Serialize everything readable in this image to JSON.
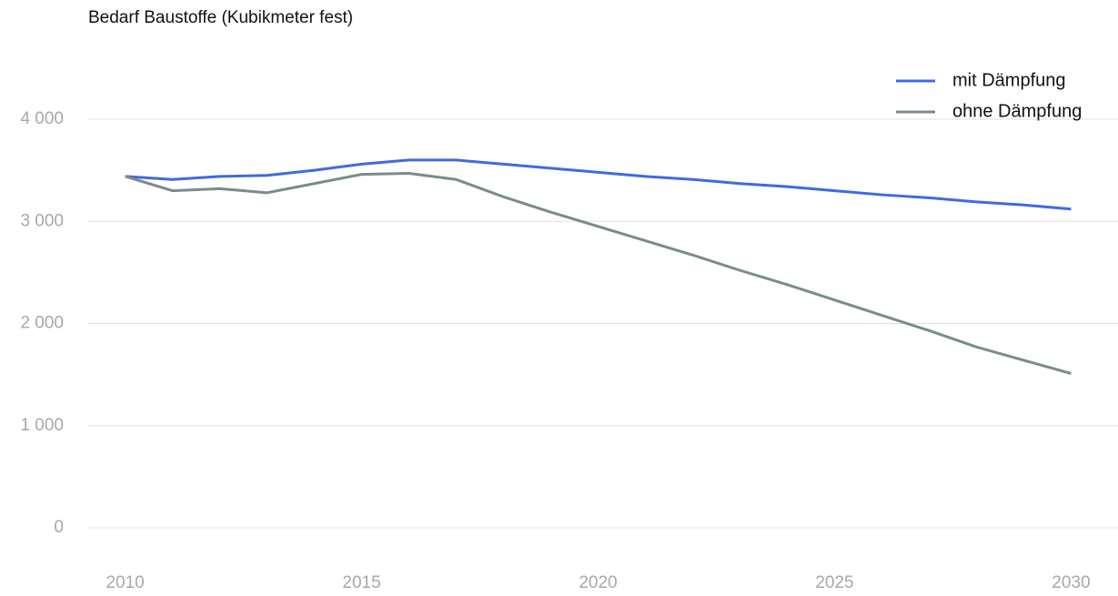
{
  "chart_data": {
    "type": "line",
    "title": "Bedarf Baustoffe (Kubikmeter fest)",
    "x": [
      2010,
      2011,
      2012,
      2013,
      2014,
      2015,
      2016,
      2017,
      2018,
      2019,
      2020,
      2021,
      2022,
      2023,
      2024,
      2025,
      2026,
      2027,
      2028,
      2029,
      2030
    ],
    "series": [
      {
        "name": "mit Dämpfung",
        "color": "#4169e1",
        "values": [
          3440,
          3410,
          3440,
          3450,
          3500,
          3560,
          3600,
          3600,
          3560,
          3520,
          3480,
          3440,
          3410,
          3370,
          3340,
          3300,
          3260,
          3230,
          3190,
          3160,
          3120
        ]
      },
      {
        "name": "ohne Dämpfung",
        "color": "#7a8c8a",
        "values": [
          3440,
          3300,
          3320,
          3280,
          3370,
          3460,
          3470,
          3410,
          3240,
          3090,
          2950,
          2810,
          2670,
          2520,
          2380,
          2230,
          2080,
          1930,
          1770,
          1640,
          1510
        ]
      }
    ],
    "xlim": [
      2009.2,
      2030.8
    ],
    "xticks": [
      2010,
      2015,
      2020,
      2025,
      2030
    ],
    "ylim": [
      0,
      4000
    ],
    "yticks": [
      0,
      {
        "value": 1000,
        "label": "1 000"
      },
      {
        "value": 2000,
        "label": "2 000"
      },
      {
        "value": 3000,
        "label": "3 000"
      },
      {
        "value": 4000,
        "label": "4 000"
      }
    ],
    "grid": true,
    "legend": "top-right"
  }
}
